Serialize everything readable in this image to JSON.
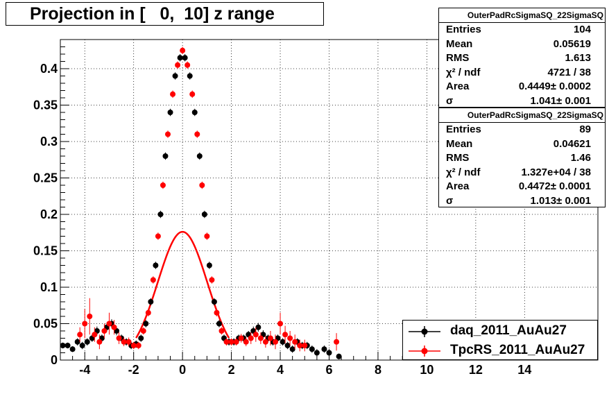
{
  "title": "Projection in [   0,  10] z range",
  "stats_boxes": [
    {
      "name": "OuterPadRcSigmaSQ_22SigmaSQ",
      "rows": [
        {
          "label": "Entries",
          "value": "104"
        },
        {
          "label": "Mean",
          "value": "0.05619"
        },
        {
          "label": "RMS",
          "value": "1.613"
        },
        {
          "label": "χ² / ndf",
          "value": "4721 / 38"
        },
        {
          "label": "Area",
          "value": "0.4449± 0.0002"
        },
        {
          "label": "σ",
          "value": "1.041± 0.001"
        }
      ]
    },
    {
      "name": "OuterPadRcSigmaSQ_22SigmaSQ",
      "rows": [
        {
          "label": "Entries",
          "value": "89"
        },
        {
          "label": "Mean",
          "value": "0.04621"
        },
        {
          "label": "RMS",
          "value": "1.46"
        },
        {
          "label": "χ² / ndf",
          "value": "1.327e+04 / 38"
        },
        {
          "label": "Area",
          "value": "0.4472± 0.0001"
        },
        {
          "label": "σ",
          "value": "1.013± 0.001"
        }
      ]
    }
  ],
  "legend": [
    {
      "label": "daq_2011_AuAu27",
      "color": "#000000"
    },
    {
      "label": "TpcRS_2011_AuAu27",
      "color": "#ff0000"
    }
  ],
  "chart_data": {
    "type": "scatter",
    "title": "Projection in [   0,  10] z range",
    "xlim": [
      -5,
      17
    ],
    "ylim": [
      0,
      0.44
    ],
    "x_ticks": [
      -4,
      -2,
      0,
      2,
      4,
      6,
      8,
      10,
      12,
      14
    ],
    "y_ticks": [
      0,
      0.05,
      0.1,
      0.15,
      0.2,
      0.25,
      0.3,
      0.35,
      0.4
    ],
    "y_tick_labels": [
      "0",
      "0.05",
      "0.1",
      "0.15",
      "0.2",
      "0.25",
      "0.3",
      "0.35",
      "0.4"
    ],
    "grid": true,
    "legend_position": "bottom-right",
    "series": [
      {
        "name": "daq_2011_AuAu27",
        "color": "#000000",
        "points": [
          [
            -4.9,
            0.02,
            0.004
          ],
          [
            -4.7,
            0.02,
            0.004
          ],
          [
            -4.5,
            0.015,
            0.004
          ],
          [
            -4.3,
            0.025,
            0.005
          ],
          [
            -4.1,
            0.02,
            0.005
          ],
          [
            -3.9,
            0.025,
            0.005
          ],
          [
            -3.7,
            0.03,
            0.005
          ],
          [
            -3.5,
            0.04,
            0.006
          ],
          [
            -3.3,
            0.03,
            0.005
          ],
          [
            -3.1,
            0.045,
            0.006
          ],
          [
            -2.9,
            0.05,
            0.006
          ],
          [
            -2.7,
            0.04,
            0.006
          ],
          [
            -2.5,
            0.03,
            0.005
          ],
          [
            -2.3,
            0.025,
            0.005
          ],
          [
            -2.1,
            0.02,
            0.005
          ],
          [
            -1.9,
            0.022,
            0.005
          ],
          [
            -1.7,
            0.03,
            0.005
          ],
          [
            -1.5,
            0.05,
            0.005
          ],
          [
            -1.3,
            0.08,
            0.005
          ],
          [
            -1.1,
            0.13,
            0.005
          ],
          [
            -0.9,
            0.2,
            0.005
          ],
          [
            -0.7,
            0.28,
            0.005
          ],
          [
            -0.5,
            0.34,
            0.005
          ],
          [
            -0.3,
            0.39,
            0.005
          ],
          [
            -0.1,
            0.415,
            0.005
          ],
          [
            0.1,
            0.415,
            0.005
          ],
          [
            0.3,
            0.39,
            0.005
          ],
          [
            0.5,
            0.34,
            0.005
          ],
          [
            0.7,
            0.28,
            0.005
          ],
          [
            0.9,
            0.2,
            0.005
          ],
          [
            1.1,
            0.13,
            0.005
          ],
          [
            1.3,
            0.08,
            0.005
          ],
          [
            1.5,
            0.05,
            0.005
          ],
          [
            1.7,
            0.03,
            0.005
          ],
          [
            1.9,
            0.025,
            0.005
          ],
          [
            2.1,
            0.025,
            0.005
          ],
          [
            2.3,
            0.03,
            0.005
          ],
          [
            2.5,
            0.03,
            0.005
          ],
          [
            2.7,
            0.035,
            0.005
          ],
          [
            2.9,
            0.04,
            0.006
          ],
          [
            3.1,
            0.045,
            0.006
          ],
          [
            3.3,
            0.035,
            0.006
          ],
          [
            3.5,
            0.03,
            0.005
          ],
          [
            3.7,
            0.025,
            0.005
          ],
          [
            3.9,
            0.03,
            0.005
          ],
          [
            4.1,
            0.025,
            0.005
          ],
          [
            4.3,
            0.02,
            0.005
          ],
          [
            4.5,
            0.015,
            0.005
          ],
          [
            4.7,
            0.025,
            0.005
          ],
          [
            4.9,
            0.02,
            0.005
          ],
          [
            5.1,
            0.02,
            0.005
          ],
          [
            5.3,
            0.015,
            0.005
          ],
          [
            5.5,
            0.01,
            0.005
          ],
          [
            5.8,
            0.015,
            0.005
          ],
          [
            6.0,
            0.01,
            0.005
          ],
          [
            6.4,
            0.005,
            0.004
          ]
        ]
      },
      {
        "name": "TpcRS_2011_AuAu27",
        "color": "#ff0000",
        "points": [
          [
            -4.2,
            0.035,
            0.01
          ],
          [
            -4.0,
            0.05,
            0.02
          ],
          [
            -3.8,
            0.06,
            0.025
          ],
          [
            -3.6,
            0.035,
            0.01
          ],
          [
            -3.4,
            0.025,
            0.01
          ],
          [
            -3.2,
            0.04,
            0.01
          ],
          [
            -3.0,
            0.05,
            0.015
          ],
          [
            -2.8,
            0.045,
            0.01
          ],
          [
            -2.6,
            0.03,
            0.008
          ],
          [
            -2.4,
            0.025,
            0.006
          ],
          [
            -2.2,
            0.025,
            0.006
          ],
          [
            -2.0,
            0.02,
            0.005
          ],
          [
            -1.8,
            0.02,
            0.005
          ],
          [
            -1.6,
            0.04,
            0.005
          ],
          [
            -1.4,
            0.065,
            0.005
          ],
          [
            -1.2,
            0.11,
            0.005
          ],
          [
            -1.0,
            0.17,
            0.005
          ],
          [
            -0.8,
            0.24,
            0.005
          ],
          [
            -0.6,
            0.31,
            0.005
          ],
          [
            -0.4,
            0.365,
            0.005
          ],
          [
            -0.2,
            0.405,
            0.005
          ],
          [
            0.0,
            0.425,
            0.005
          ],
          [
            0.2,
            0.405,
            0.005
          ],
          [
            0.4,
            0.365,
            0.005
          ],
          [
            0.6,
            0.31,
            0.005
          ],
          [
            0.8,
            0.24,
            0.005
          ],
          [
            1.0,
            0.17,
            0.005
          ],
          [
            1.2,
            0.11,
            0.005
          ],
          [
            1.4,
            0.065,
            0.005
          ],
          [
            1.6,
            0.04,
            0.005
          ],
          [
            1.8,
            0.025,
            0.005
          ],
          [
            2.0,
            0.025,
            0.005
          ],
          [
            2.2,
            0.025,
            0.005
          ],
          [
            2.4,
            0.03,
            0.006
          ],
          [
            2.6,
            0.025,
            0.006
          ],
          [
            2.8,
            0.03,
            0.008
          ],
          [
            3.0,
            0.035,
            0.01
          ],
          [
            3.2,
            0.03,
            0.008
          ],
          [
            3.4,
            0.025,
            0.008
          ],
          [
            3.6,
            0.03,
            0.01
          ],
          [
            3.8,
            0.025,
            0.01
          ],
          [
            4.0,
            0.05,
            0.015
          ],
          [
            4.2,
            0.035,
            0.012
          ],
          [
            4.4,
            0.03,
            0.01
          ],
          [
            4.6,
            0.025,
            0.01
          ],
          [
            4.8,
            0.02,
            0.008
          ],
          [
            5.0,
            0.02,
            0.008
          ],
          [
            6.3,
            0.025,
            0.012
          ]
        ]
      }
    ],
    "fit_curve": {
      "color": "#ff0000",
      "area": 0.4472,
      "sigma": 1.013
    }
  }
}
